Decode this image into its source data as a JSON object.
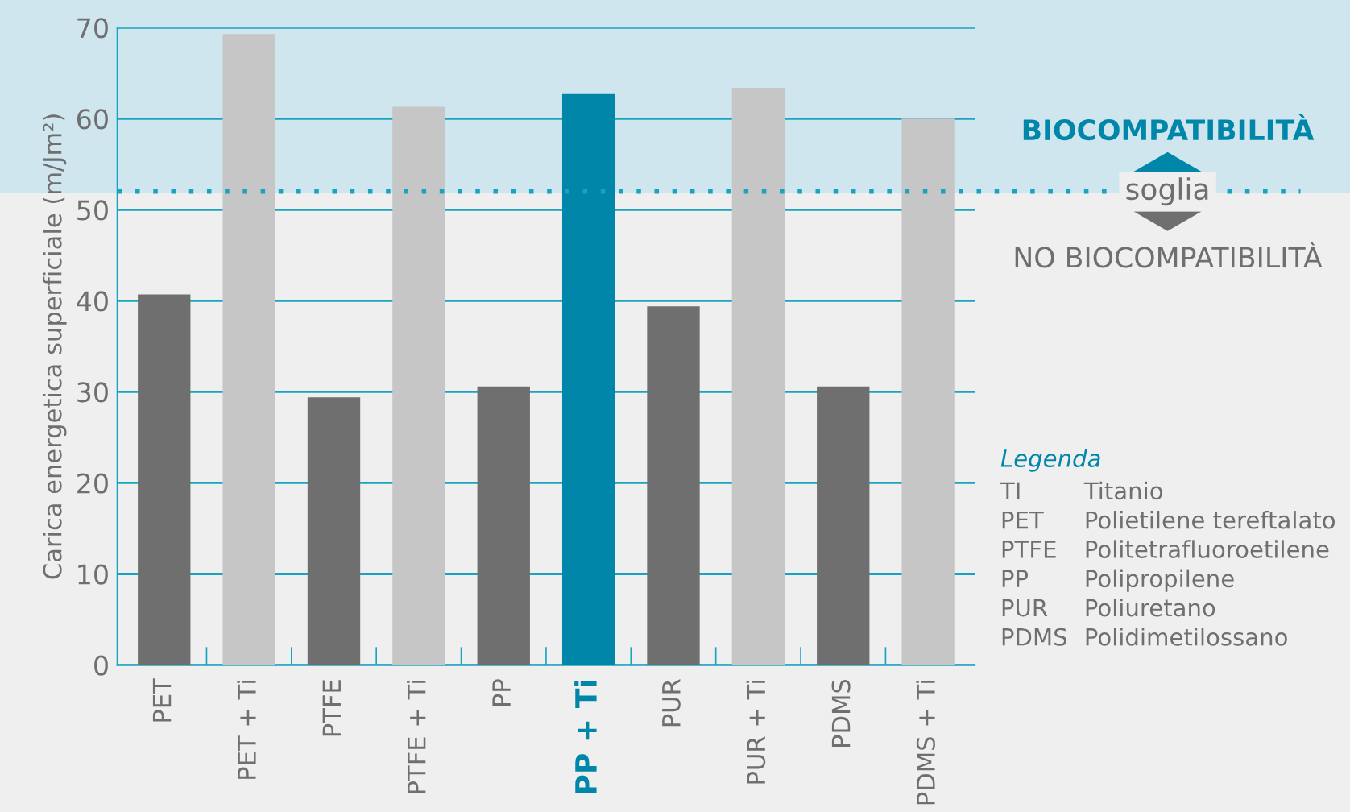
{
  "chart_data": {
    "type": "bar",
    "ylabel": "Carica energetica superficiale (m/Jm²)",
    "categories": [
      "PET",
      "PET + Ti",
      "PTFE",
      "PTFE + Ti",
      "PP",
      "PP + Ti",
      "PUR",
      "PUR + Ti",
      "PDMS",
      "PDMS + Ti"
    ],
    "values": [
      40.7,
      69.3,
      29.4,
      61.3,
      30.6,
      62.7,
      39.4,
      63.4,
      30.6,
      60.0
    ],
    "colors": [
      "#6f6f6f",
      "#c6c6c6",
      "#6f6f6f",
      "#c6c6c6",
      "#6f6f6f",
      "#0086a8",
      "#6f6f6f",
      "#c6c6c6",
      "#6f6f6f",
      "#c6c6c6"
    ],
    "ylim": [
      0,
      70
    ],
    "yticks": [
      0,
      10,
      20,
      30,
      40,
      50,
      60,
      70
    ],
    "grid": "y",
    "ref_lines": [
      {
        "axis": "y",
        "value": 52,
        "label": "soglia",
        "color": "#1aa3c0",
        "line_style": "dotted"
      }
    ],
    "bands": [
      {
        "axis": "y",
        "from": 52,
        "to": 70,
        "color": "#d0e6ef"
      }
    ],
    "annotations": [
      "BIOCOMPATIBILITÀ",
      "NO BIOCOMPATIBILITÀ",
      "Legenda",
      "TI",
      "Titanio",
      "PET",
      "Polietilene tereftalato",
      "PTFE",
      "Politetrafluoroetilene",
      "PP",
      "Polipropilene",
      "PUR",
      "Poliuretano",
      "PDMS",
      "Polidimetilossano"
    ]
  }
}
